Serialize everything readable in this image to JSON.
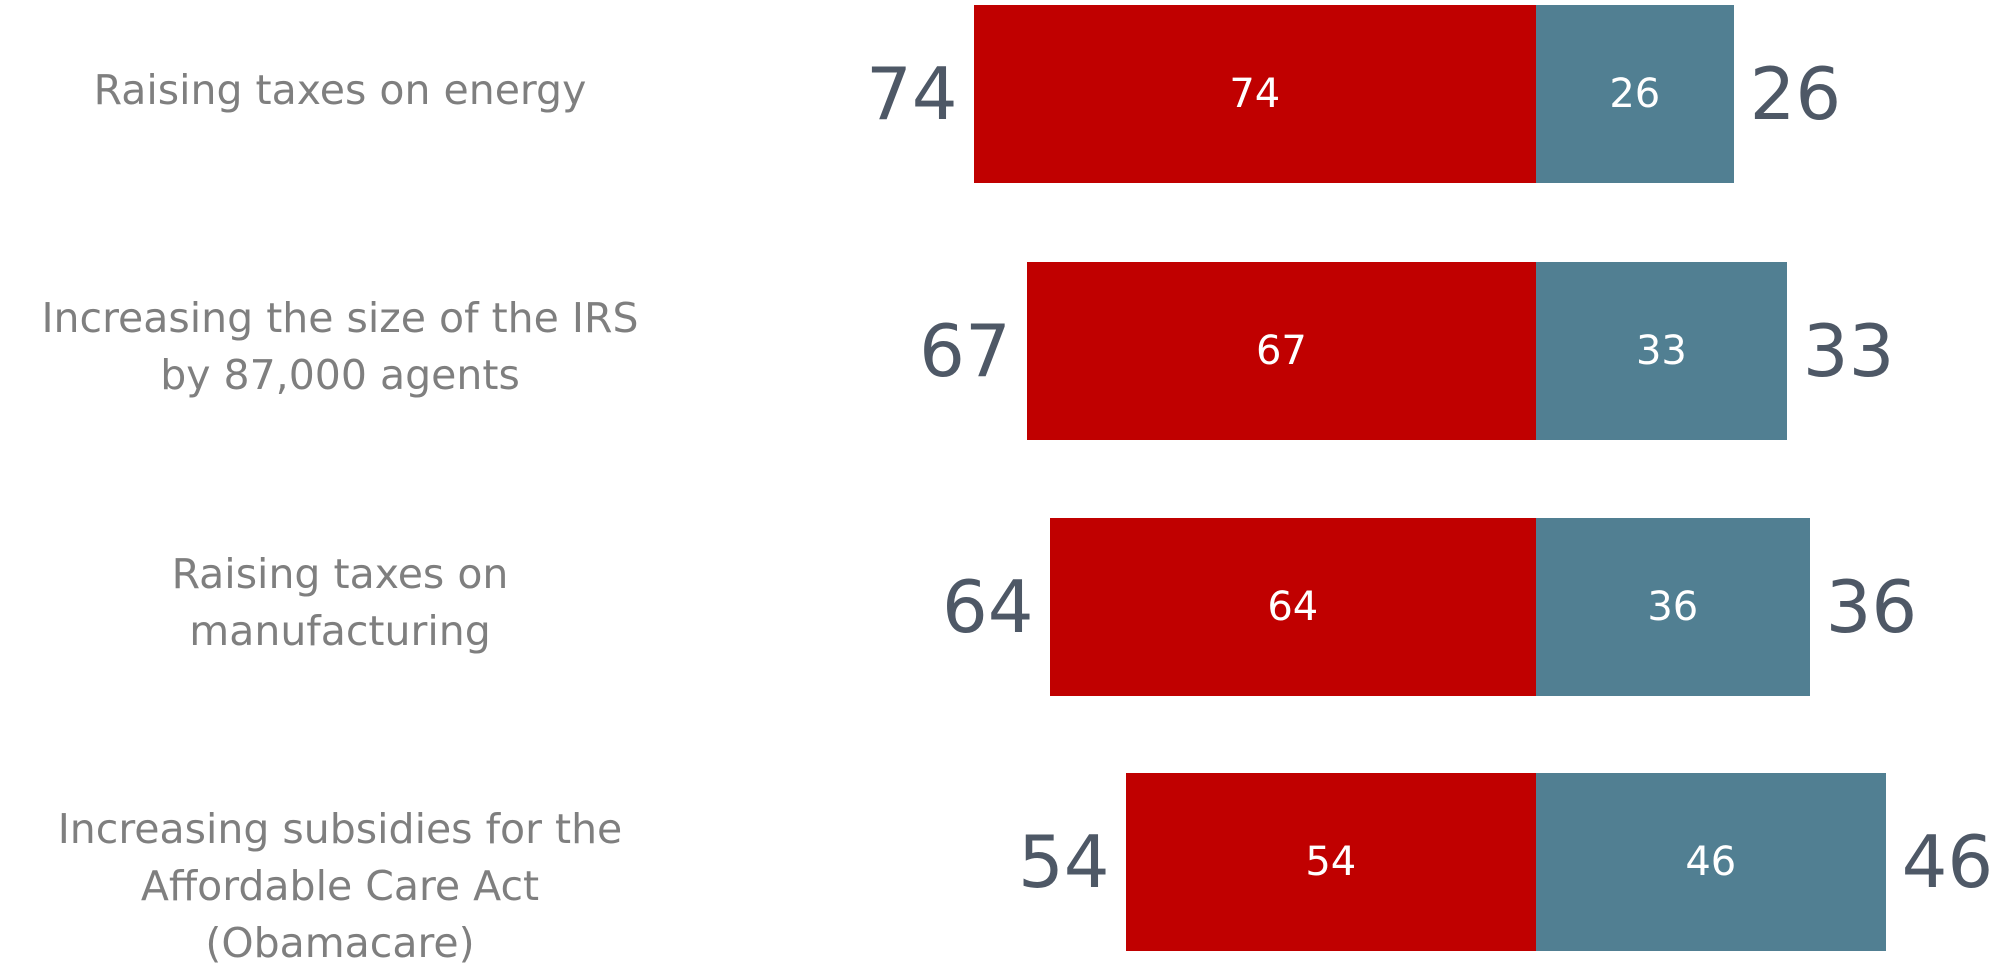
{
  "chart_data": {
    "type": "bar",
    "orientation": "horizontal",
    "stacked": true,
    "categories": [
      "Raising taxes on energy",
      "Increasing the size of the IRS\nby 87,000 agents",
      "Raising taxes on\nmanufacturing",
      "Increasing subsidies for the\nAffordable Care Act (Obamacare)"
    ],
    "series": [
      {
        "values": [
          74,
          67,
          64,
          54
        ],
        "color": "#c00000"
      },
      {
        "values": [
          26,
          33,
          36,
          46
        ],
        "color": "#517f92"
      }
    ],
    "title": "",
    "xlabel": "",
    "ylabel": "",
    "grid": false,
    "legend": "none"
  },
  "colors": {
    "category_text": "#7f7f7f",
    "outer_value_text": "#4e5866",
    "inner_value_text": "#ffffff"
  }
}
